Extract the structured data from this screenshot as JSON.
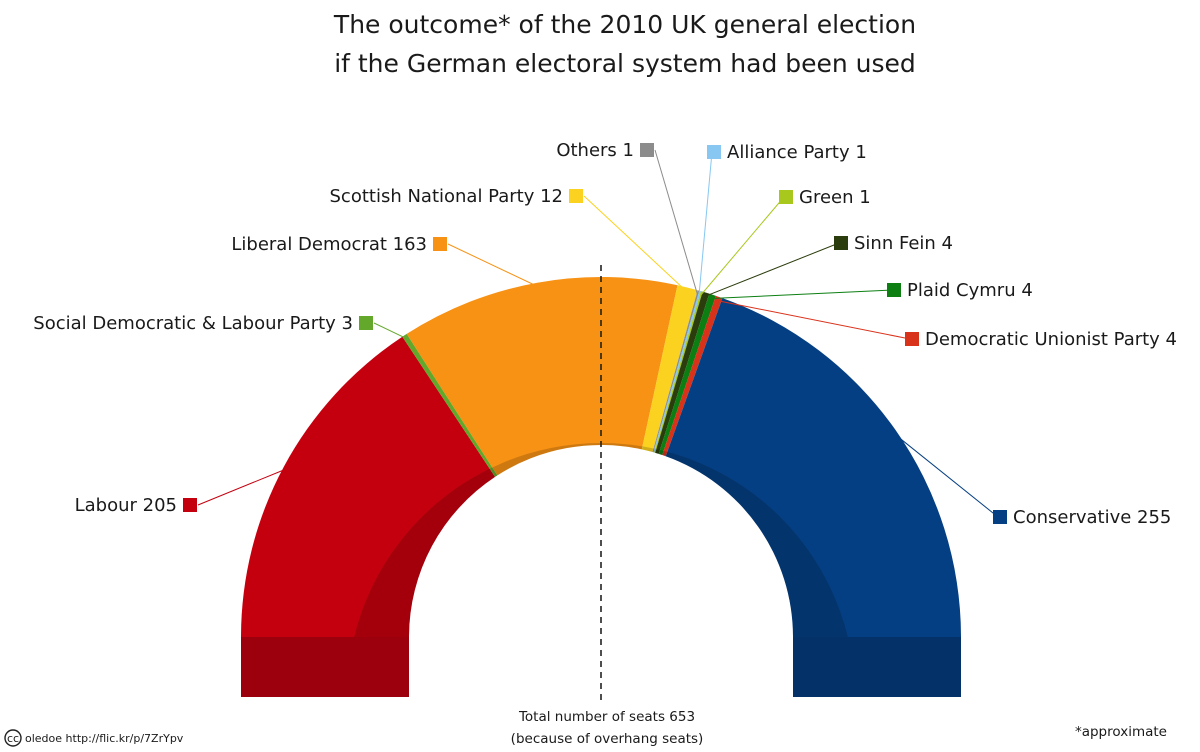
{
  "title_lines": [
    "The outcome* of the 2010 UK general election",
    "if the German electoral system had been used"
  ],
  "total_label_lines": [
    "Total number of seats 653",
    "(because of overhang seats)"
  ],
  "footnote": "*approximate",
  "credit": {
    "icon": "cc-icon",
    "icon_text": "cc",
    "text": "oledoe http://flic.kr/p/7ZrYpv"
  },
  "chart_data": {
    "type": "pie",
    "variant": "semicircle (parliament hemicycle)",
    "total": 653,
    "series": [
      {
        "name": "Labour",
        "value": 205,
        "color": "#c4000f",
        "label": "Labour 205"
      },
      {
        "name": "Social Democratic & Labour Party",
        "value": 3,
        "color": "#63a82b",
        "label": "Social Democratic & Labour Party 3"
      },
      {
        "name": "Liberal Democrat",
        "value": 163,
        "color": "#f79214",
        "label": "Liberal Democrat 163"
      },
      {
        "name": "Scottish National Party",
        "value": 12,
        "color": "#fbd21f",
        "label": "Scottish National Party 12"
      },
      {
        "name": "Others",
        "value": 1,
        "color": "#8c8c8c",
        "label": "Others 1"
      },
      {
        "name": "Alliance Party",
        "value": 1,
        "color": "#87c7f2",
        "label": "Alliance Party 1"
      },
      {
        "name": "Green",
        "value": 1,
        "color": "#a8c81e",
        "label": "Green 1"
      },
      {
        "name": "Sinn Fein",
        "value": 4,
        "color": "#2b3d0c",
        "label": "Sinn Fein 4"
      },
      {
        "name": "Plaid Cymru",
        "value": 4,
        "color": "#0d7f12",
        "label": "Plaid Cymru 4"
      },
      {
        "name": "Democratic Unionist Party",
        "value": 4,
        "color": "#d9321b",
        "label": "Democratic Unionist Party 4"
      },
      {
        "name": "Conservative",
        "value": 255,
        "color": "#053f83",
        "label": "Conservative 255"
      }
    ],
    "legend": "labels beside slices with leader lines",
    "reference_line": "dashed vertical line at majority midpoint"
  }
}
